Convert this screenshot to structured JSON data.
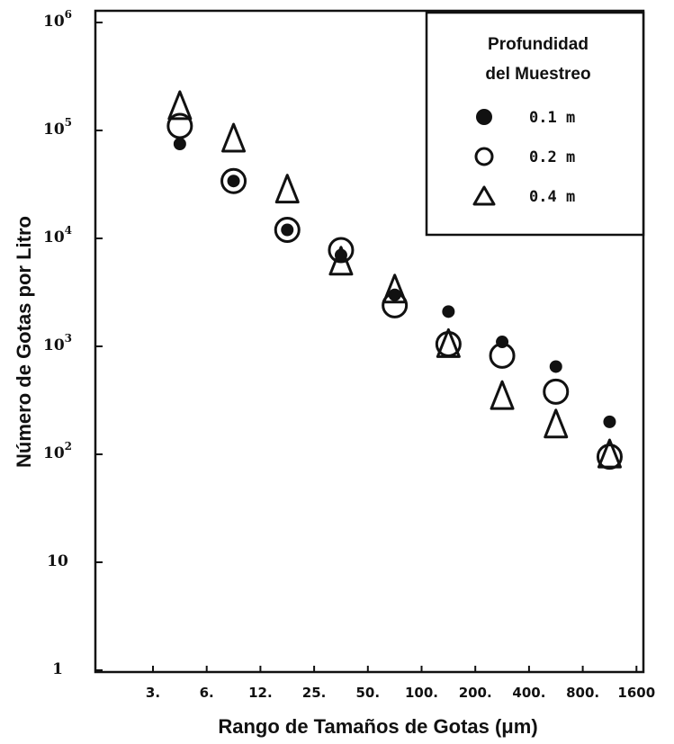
{
  "chart_data": {
    "type": "scatter",
    "xlabel": "Rango de Tamaños de Gotas (μm)",
    "ylabel": "Número de Gotas por Litro",
    "categories": [
      "3.",
      "6.",
      "12.",
      "25.",
      "50.",
      "100.",
      "200.",
      "400.",
      "800.",
      "1600"
    ],
    "bins": [
      "3-6",
      "6-12",
      "12-25",
      "25-50",
      "50-100",
      "100-200",
      "200-400",
      "400-800",
      "800-1600"
    ],
    "y_ticks": [
      {
        "base": "1",
        "exp": "",
        "value": 1
      },
      {
        "base": "10",
        "exp": "",
        "value": 10
      },
      {
        "base": "10",
        "exp": "2",
        "value": 100
      },
      {
        "base": "10",
        "exp": "3",
        "value": 1000
      },
      {
        "base": "10",
        "exp": "4",
        "value": 10000
      },
      {
        "base": "10",
        "exp": "5",
        "value": 100000
      },
      {
        "base": "10",
        "exp": "6",
        "value": 1000000
      }
    ],
    "yscale": "log",
    "ylim": [
      1,
      1000000
    ],
    "grid": false,
    "legend": {
      "position": "top-right",
      "title_line1": "Profundidad",
      "title_line2": "del Muestreo"
    },
    "series": [
      {
        "name": "0.1 m",
        "marker": "filled-circle",
        "values": [
          75000,
          34000,
          12000,
          7000,
          3000,
          2100,
          1100,
          650,
          200
        ]
      },
      {
        "name": "0.2 m",
        "marker": "open-circle",
        "values": [
          110000,
          34000,
          12000,
          7800,
          2400,
          1050,
          820,
          380,
          95
        ]
      },
      {
        "name": "0.4 m",
        "marker": "open-triangle",
        "values": [
          160000,
          80000,
          27000,
          5800,
          3200,
          1000,
          330,
          180,
          95
        ]
      }
    ]
  }
}
